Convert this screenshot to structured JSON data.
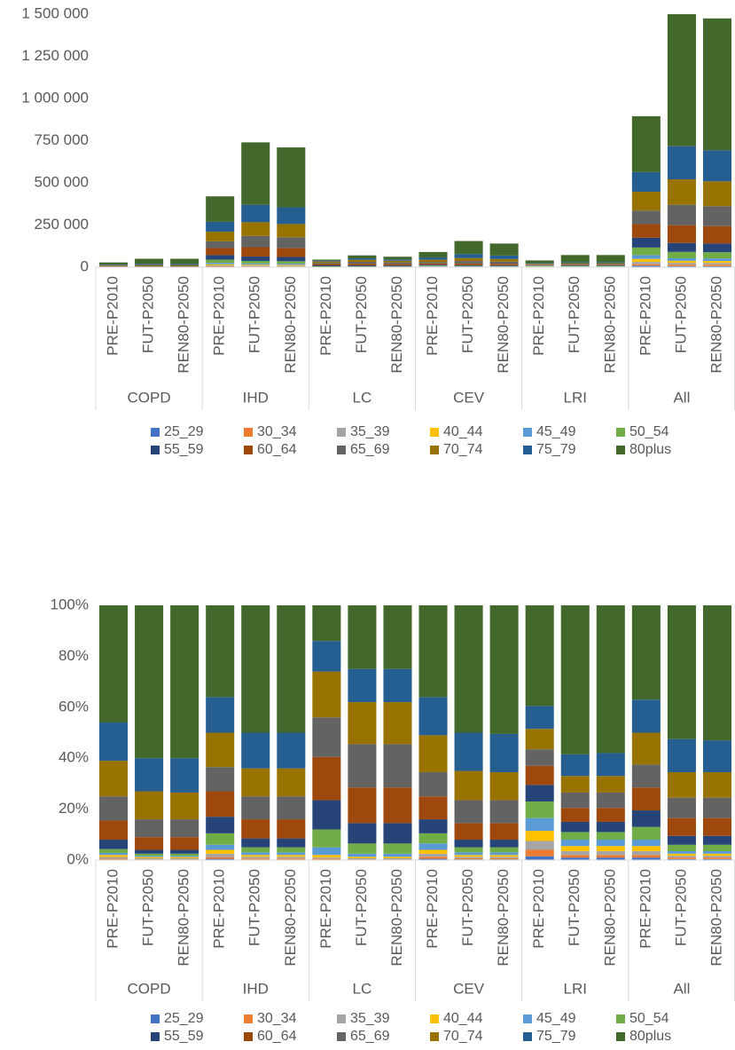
{
  "chart_data": [
    {
      "type": "stacked-bar",
      "categories": [
        "PRE-P2010",
        "FUT-P2050",
        "REN80-P2050",
        "PRE-P2010",
        "FUT-P2050",
        "REN80-P2050",
        "PRE-P2010",
        "FUT-P2050",
        "REN80-P2050",
        "PRE-P2010",
        "FUT-P2050",
        "REN80-P2050",
        "PRE-P2010",
        "FUT-P2050",
        "REN80-P2050",
        "PRE-P2010",
        "FUT-P2050",
        "REN80-P2050"
      ],
      "groups": [
        "COPD",
        "IHD",
        "LC",
        "CEV",
        "LRI",
        "All"
      ],
      "ylim": [
        0,
        1500000
      ],
      "yticks": [
        0,
        {
          "value": 250000,
          "label": "250 000"
        },
        {
          "value": 500000,
          "label": "500 000"
        },
        {
          "value": 750000,
          "label": "750 000"
        },
        {
          "value": 1000000,
          "label": "1 000 000"
        },
        {
          "value": 1250000,
          "label": "1 250 000"
        },
        {
          "value": 1500000,
          "label": "1 500 000"
        }
      ],
      "series": [
        {
          "name": "25_29",
          "color": "#4472c4",
          "values": [
            60,
            50,
            50,
            2100,
            1480,
            1420,
            90,
            70,
            62,
            450,
            465,
            420,
            600,
            720,
            720,
            8950,
            6040,
            5900
          ]
        },
        {
          "name": "30_34",
          "color": "#ed7d31",
          "values": [
            80,
            100,
            100,
            2940,
            2960,
            2840,
            135,
            140,
            124,
            720,
            620,
            560,
            1000,
            720,
            720,
            8950,
            9060,
            8850
          ]
        },
        {
          "name": "35_39",
          "color": "#a5a5a5",
          "values": [
            200,
            200,
            200,
            5460,
            5180,
            4970,
            225,
            280,
            248,
            1080,
            930,
            840,
            1400,
            1080,
            1080,
            13425,
            10570,
            10325
          ]
        },
        {
          "name": "40_44",
          "color": "#ffc000",
          "values": [
            220,
            250,
            250,
            6300,
            5180,
            4970,
            450,
            420,
            372,
            1350,
            1085,
            980,
            1600,
            1440,
            1440,
            17900,
            12080,
            11800
          ]
        },
        {
          "name": "45_49",
          "color": "#5b9bd5",
          "values": [
            220,
            250,
            250,
            8400,
            7400,
            7100,
            1350,
            840,
            744,
            2250,
            1550,
            1400,
            2000,
            1800,
            1800,
            22375,
            15100,
            14750
          ]
        },
        {
          "name": "50_54",
          "color": "#70ad47",
          "values": [
            420,
            400,
            400,
            18900,
            14800,
            14200,
            3150,
            2800,
            2480,
            3600,
            3100,
            2800,
            2600,
            2160,
            2160,
            44750,
            37750,
            36875
          ]
        },
        {
          "name": "55_59",
          "color": "#264478",
          "values": [
            1040,
            750,
            750,
            27300,
            25900,
            24850,
            5175,
            5600,
            4960,
            4950,
            4650,
            4200,
            2600,
            2880,
            2880,
            58175,
            52850,
            51625
          ]
        },
        {
          "name": "60_64",
          "color": "#9e480e",
          "values": [
            2100,
            2500,
            2500,
            42000,
            55500,
            53250,
            7650,
            9800,
            8680,
            8100,
            10075,
            9100,
            3000,
            3960,
            3960,
            80550,
            105700,
            103250
          ]
        },
        {
          "name": "65_69",
          "color": "#636363",
          "values": [
            2660,
            3500,
            3500,
            39900,
            66600,
            63900,
            6975,
            11900,
            10540,
            8550,
            13950,
            12600,
            2600,
            4320,
            4320,
            80550,
            120800,
            118000
          ]
        },
        {
          "name": "70_74",
          "color": "#997300",
          "values": [
            3920,
            5500,
            5250,
            56700,
            81400,
            78100,
            8100,
            11550,
            10230,
            13050,
            17825,
            15400,
            3200,
            4680,
            4680,
            111875,
            151000,
            147500
          ]
        },
        {
          "name": "75_79",
          "color": "#255e91",
          "values": [
            4200,
            6500,
            6750,
            58800,
            103600,
            99400,
            5400,
            9100,
            8060,
            13500,
            23250,
            21000,
            3600,
            6120,
            6480,
            116350,
            196300,
            184375
          ]
        },
        {
          "name": "80plus",
          "color": "#43682b",
          "values": [
            12880,
            30000,
            30000,
            151200,
            370000,
            355000,
            6300,
            17500,
            15500,
            32400,
            77500,
            70700,
            15800,
            42120,
            41760,
            331150,
            782750,
            781750
          ]
        }
      ]
    },
    {
      "type": "stacked-bar",
      "categories": [
        "PRE-P2010",
        "FUT-P2050",
        "REN80-P2050",
        "PRE-P2010",
        "FUT-P2050",
        "REN80-P2050",
        "PRE-P2010",
        "FUT-P2050",
        "REN80-P2050",
        "PRE-P2010",
        "FUT-P2050",
        "REN80-P2050",
        "PRE-P2010",
        "FUT-P2050",
        "REN80-P2050",
        "PRE-P2010",
        "FUT-P2050",
        "REN80-P2050"
      ],
      "groups": [
        "COPD",
        "IHD",
        "LC",
        "CEV",
        "LRI",
        "All"
      ],
      "ylim": [
        0,
        100
      ],
      "yticks": [
        {
          "value": 0,
          "label": "0%"
        },
        {
          "value": 20,
          "label": "20%"
        },
        {
          "value": 40,
          "label": "40%"
        },
        {
          "value": 60,
          "label": "60%"
        },
        {
          "value": 80,
          "label": "80%"
        },
        {
          "value": 100,
          "label": "100%"
        }
      ],
      "series": [
        {
          "name": "25_29",
          "color": "#4472c4",
          "values": [
            0.2,
            0.1,
            0.1,
            0.5,
            0.2,
            0.2,
            0.2,
            0.1,
            0.1,
            0.5,
            0.3,
            0.3,
            1.5,
            1,
            1,
            1,
            0.4,
            0.4
          ]
        },
        {
          "name": "30_34",
          "color": "#ed7d31",
          "values": [
            0.3,
            0.2,
            0.2,
            0.7,
            0.4,
            0.4,
            0.3,
            0.2,
            0.2,
            0.8,
            0.4,
            0.4,
            2.5,
            1,
            1,
            1,
            0.6,
            0.6
          ]
        },
        {
          "name": "35_39",
          "color": "#a5a5a5",
          "values": [
            0.7,
            0.4,
            0.4,
            1.3,
            0.7,
            0.7,
            0.5,
            0.4,
            0.4,
            1.2,
            0.6,
            0.6,
            3.5,
            1.5,
            1.5,
            1.5,
            0.7,
            0.7
          ]
        },
        {
          "name": "40_44",
          "color": "#ffc000",
          "values": [
            0.8,
            0.5,
            0.5,
            1.5,
            0.7,
            0.7,
            1,
            0.6,
            0.6,
            1.5,
            0.7,
            0.7,
            4,
            2,
            2,
            2,
            0.8,
            0.8
          ]
        },
        {
          "name": "45_49",
          "color": "#5b9bd5",
          "values": [
            0.8,
            0.5,
            0.5,
            2,
            1,
            1,
            3,
            1.2,
            1.2,
            2.5,
            1,
            1,
            5,
            2.5,
            2.5,
            2.5,
            1,
            1
          ]
        },
        {
          "name": "50_54",
          "color": "#70ad47",
          "values": [
            1.5,
            0.8,
            0.8,
            4.5,
            2,
            2,
            7,
            4,
            4,
            4,
            2,
            2,
            6.5,
            3,
            3,
            5,
            2.5,
            2.5
          ]
        },
        {
          "name": "55_59",
          "color": "#264478",
          "values": [
            3.7,
            1.5,
            1.5,
            6.5,
            3.5,
            3.5,
            11.5,
            8,
            8,
            5.5,
            3,
            3,
            6.5,
            4,
            4,
            6.5,
            3.5,
            3.5
          ]
        },
        {
          "name": "60_64",
          "color": "#9e480e",
          "values": [
            7.5,
            5,
            5,
            10,
            7.5,
            7.5,
            17,
            14,
            14,
            9,
            6.5,
            6.5,
            7.5,
            5.5,
            5.5,
            9,
            7,
            7
          ]
        },
        {
          "name": "65_69",
          "color": "#636363",
          "values": [
            9.5,
            7,
            7,
            9.5,
            9,
            9,
            15.5,
            17,
            17,
            9.5,
            9,
            9,
            6.5,
            6,
            6,
            9,
            8,
            8
          ]
        },
        {
          "name": "70_74",
          "color": "#997300",
          "values": [
            14,
            11,
            10.5,
            13.5,
            11,
            11,
            18,
            16.5,
            16.5,
            14.5,
            11.5,
            11,
            8,
            6.5,
            6.5,
            12.5,
            10,
            10
          ]
        },
        {
          "name": "75_79",
          "color": "#255e91",
          "values": [
            15,
            13,
            13.5,
            14,
            14,
            14,
            12,
            13,
            13,
            15,
            15,
            15,
            9,
            8.5,
            9,
            13,
            13,
            12.5
          ]
        },
        {
          "name": "80plus",
          "color": "#43682b",
          "values": [
            46,
            60,
            60,
            36,
            50,
            50,
            14,
            25,
            25,
            36,
            50,
            50.5,
            39.5,
            58.5,
            58,
            37,
            52.5,
            53
          ]
        }
      ]
    }
  ]
}
